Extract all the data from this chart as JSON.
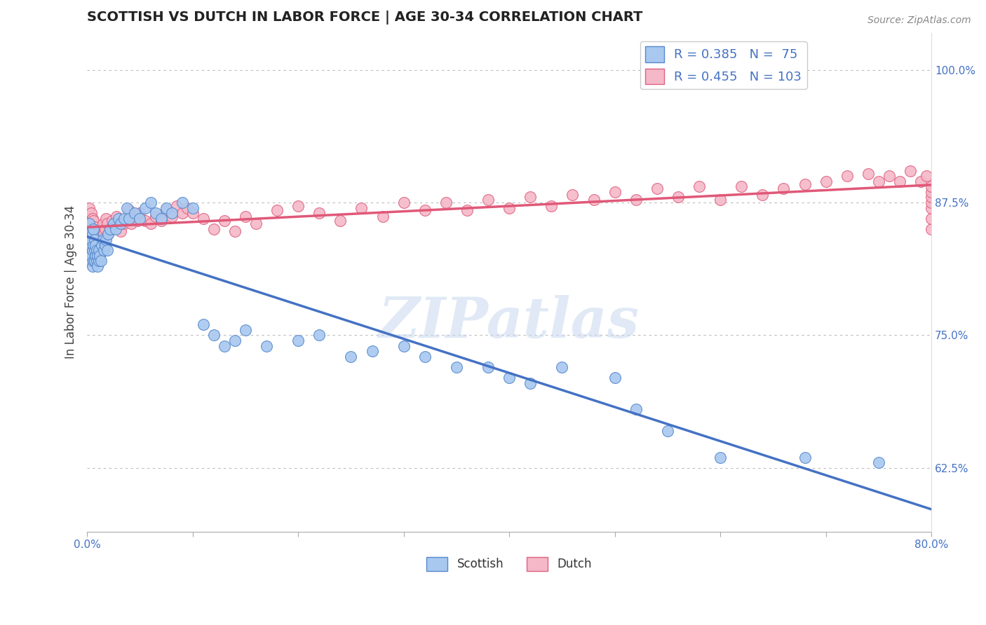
{
  "title": "SCOTTISH VS DUTCH IN LABOR FORCE | AGE 30-34 CORRELATION CHART",
  "source": "Source: ZipAtlas.com",
  "ylabel": "In Labor Force | Age 30-34",
  "xlim": [
    0.0,
    0.8
  ],
  "ylim": [
    0.565,
    1.035
  ],
  "xticks": [
    0.0,
    0.1,
    0.2,
    0.3,
    0.4,
    0.5,
    0.6,
    0.7,
    0.8
  ],
  "xticklabels": [
    "0.0%",
    "",
    "",
    "",
    "",
    "",
    "",
    "",
    "80.0%"
  ],
  "yticks_right": [
    0.625,
    0.75,
    0.875,
    1.0
  ],
  "yticklabels_right": [
    "62.5%",
    "75.0%",
    "87.5%",
    "100.0%"
  ],
  "scottish_color": "#A8C8F0",
  "dutch_color": "#F4B8C8",
  "scottish_edge_color": "#5588CC",
  "dutch_edge_color": "#E06080",
  "scottish_line_color": "#4472C4",
  "dutch_line_color": "#E05878",
  "scottish_R": 0.385,
  "scottish_N": 75,
  "dutch_R": 0.455,
  "dutch_N": 103,
  "watermark": "ZIPatlas",
  "scottish_x": [
    0.001,
    0.002,
    0.002,
    0.003,
    0.003,
    0.003,
    0.004,
    0.004,
    0.005,
    0.005,
    0.005,
    0.006,
    0.006,
    0.006,
    0.007,
    0.007,
    0.007,
    0.008,
    0.008,
    0.009,
    0.009,
    0.01,
    0.01,
    0.011,
    0.011,
    0.012,
    0.013,
    0.014,
    0.015,
    0.016,
    0.017,
    0.018,
    0.019,
    0.02,
    0.022,
    0.025,
    0.027,
    0.03,
    0.032,
    0.035,
    0.038,
    0.04,
    0.045,
    0.05,
    0.055,
    0.06,
    0.065,
    0.07,
    0.075,
    0.08,
    0.09,
    0.1,
    0.11,
    0.12,
    0.13,
    0.14,
    0.15,
    0.17,
    0.2,
    0.22,
    0.25,
    0.27,
    0.3,
    0.32,
    0.35,
    0.38,
    0.4,
    0.42,
    0.45,
    0.5,
    0.52,
    0.55,
    0.6,
    0.68,
    0.75
  ],
  "scottish_y": [
    0.84,
    0.83,
    0.855,
    0.82,
    0.835,
    0.845,
    0.825,
    0.84,
    0.815,
    0.83,
    0.845,
    0.82,
    0.835,
    0.85,
    0.83,
    0.82,
    0.84,
    0.825,
    0.835,
    0.82,
    0.83,
    0.815,
    0.825,
    0.82,
    0.83,
    0.825,
    0.82,
    0.835,
    0.84,
    0.83,
    0.835,
    0.84,
    0.83,
    0.845,
    0.85,
    0.855,
    0.85,
    0.86,
    0.855,
    0.86,
    0.87,
    0.86,
    0.865,
    0.86,
    0.87,
    0.875,
    0.865,
    0.86,
    0.87,
    0.865,
    0.875,
    0.87,
    0.76,
    0.75,
    0.74,
    0.745,
    0.755,
    0.74,
    0.745,
    0.75,
    0.73,
    0.735,
    0.74,
    0.73,
    0.72,
    0.72,
    0.71,
    0.705,
    0.72,
    0.71,
    0.68,
    0.66,
    0.635,
    0.635,
    0.63
  ],
  "dutch_x": [
    0.001,
    0.002,
    0.002,
    0.003,
    0.003,
    0.004,
    0.004,
    0.004,
    0.005,
    0.005,
    0.005,
    0.006,
    0.006,
    0.006,
    0.007,
    0.007,
    0.008,
    0.008,
    0.009,
    0.009,
    0.01,
    0.01,
    0.011,
    0.012,
    0.013,
    0.014,
    0.015,
    0.016,
    0.017,
    0.018,
    0.019,
    0.02,
    0.022,
    0.024,
    0.026,
    0.028,
    0.03,
    0.032,
    0.035,
    0.038,
    0.04,
    0.042,
    0.045,
    0.048,
    0.05,
    0.055,
    0.06,
    0.065,
    0.07,
    0.075,
    0.08,
    0.085,
    0.09,
    0.095,
    0.1,
    0.11,
    0.12,
    0.13,
    0.14,
    0.15,
    0.16,
    0.18,
    0.2,
    0.22,
    0.24,
    0.26,
    0.28,
    0.3,
    0.32,
    0.34,
    0.36,
    0.38,
    0.4,
    0.42,
    0.44,
    0.46,
    0.48,
    0.5,
    0.52,
    0.54,
    0.56,
    0.58,
    0.6,
    0.62,
    0.64,
    0.66,
    0.68,
    0.7,
    0.72,
    0.74,
    0.75,
    0.76,
    0.77,
    0.78,
    0.79,
    0.795,
    0.8,
    0.8,
    0.8,
    0.8,
    0.8,
    0.8,
    0.8
  ],
  "dutch_y": [
    0.86,
    0.845,
    0.87,
    0.84,
    0.855,
    0.835,
    0.85,
    0.865,
    0.83,
    0.845,
    0.86,
    0.838,
    0.848,
    0.858,
    0.84,
    0.852,
    0.835,
    0.848,
    0.832,
    0.845,
    0.835,
    0.848,
    0.838,
    0.845,
    0.85,
    0.84,
    0.855,
    0.845,
    0.85,
    0.86,
    0.855,
    0.845,
    0.85,
    0.858,
    0.852,
    0.862,
    0.855,
    0.848,
    0.855,
    0.86,
    0.868,
    0.855,
    0.862,
    0.858,
    0.865,
    0.858,
    0.855,
    0.862,
    0.858,
    0.868,
    0.862,
    0.872,
    0.865,
    0.87,
    0.865,
    0.86,
    0.85,
    0.858,
    0.848,
    0.862,
    0.855,
    0.868,
    0.872,
    0.865,
    0.858,
    0.87,
    0.862,
    0.875,
    0.868,
    0.875,
    0.868,
    0.878,
    0.87,
    0.88,
    0.872,
    0.882,
    0.878,
    0.885,
    0.878,
    0.888,
    0.88,
    0.89,
    0.878,
    0.89,
    0.882,
    0.888,
    0.892,
    0.895,
    0.9,
    0.902,
    0.895,
    0.9,
    0.895,
    0.905,
    0.895,
    0.9,
    0.85,
    0.86,
    0.87,
    0.875,
    0.88,
    0.885,
    0.89
  ]
}
